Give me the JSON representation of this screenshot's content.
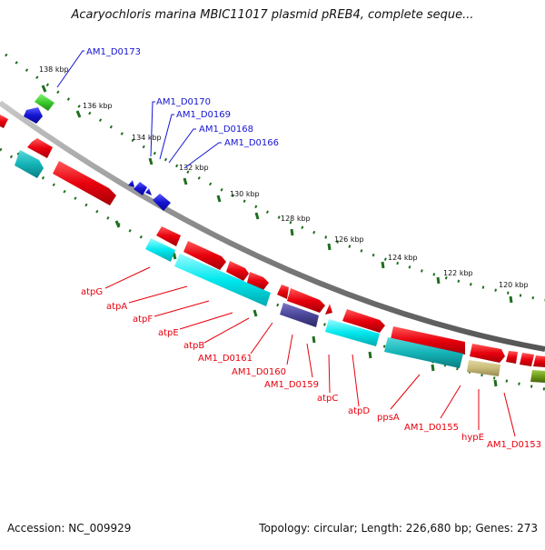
{
  "title": "Acaryochloris marina MBIC11017 plasmid pREB4, complete seque...",
  "footer": {
    "accession": "Accession: NC_009929",
    "summary": "Topology: circular; Length: 226,680 bp; Genes: 273"
  },
  "ticks": [
    "138 kbp",
    "136 kbp",
    "134 kbp",
    "132 kbp",
    "130 kbp",
    "128 kbp",
    "126 kbp",
    "124 kbp",
    "122 kbp",
    "120 kbp"
  ],
  "labels_blue": [
    "AM1_D0173",
    "AM1_D0170",
    "AM1_D0169",
    "AM1_D0168",
    "AM1_D0166"
  ],
  "labels_red": [
    "atpG",
    "atpA",
    "atpF",
    "atpE",
    "atpB",
    "AM1_D0161",
    "AM1_D0160",
    "AM1_D0159",
    "atpC",
    "atpD",
    "ppsA",
    "AM1_D0155",
    "hypE",
    "AM1_D0153"
  ],
  "colors": {
    "backbone": "#8a8a8a",
    "tick": "#1e6e1e",
    "blue": "#1414d2",
    "red": "#e8000c",
    "cyan": "#00e8ee",
    "teal": "#14b4b8",
    "purple": "#4a4699",
    "khaki": "#c8ba78",
    "olive": "#6e9a1a",
    "green": "#3dcc2e"
  }
}
